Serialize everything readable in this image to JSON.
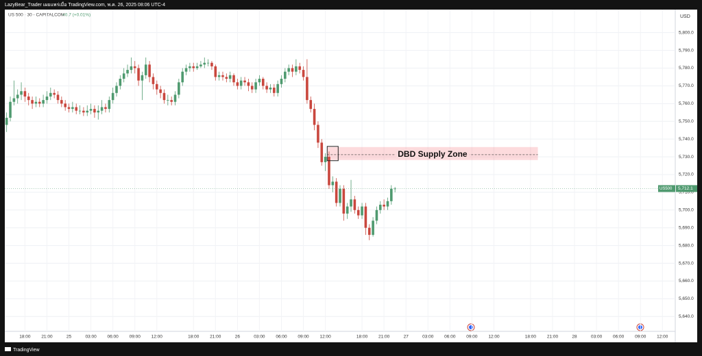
{
  "chart_data": {
    "type": "candlestick",
    "publisher": "LazyBear_Trader เผยแพร่เมื่อ TradingView.com, พ.ค. 26, 2025 08:06 UTC-4",
    "symbol_title": "US 500 - 30 - CAPITALCOM",
    "change": "+0.7 (+0.01%)",
    "currency": "USD",
    "brand": "TradingView",
    "up_color": "#4f9a6f",
    "down_color": "#c9473e",
    "grid": true,
    "xlim": [
      -0.5,
      182.5
    ],
    "ylim": [
      5632,
      5813
    ],
    "yticks": [
      {
        "value": 5640,
        "label": "5,640.0"
      },
      {
        "value": 5650,
        "label": "5,650.0"
      },
      {
        "value": 5660,
        "label": "5,660.0"
      },
      {
        "value": 5670,
        "label": "5,670.0"
      },
      {
        "value": 5680,
        "label": "5,680.0"
      },
      {
        "value": 5690,
        "label": "5,690.0"
      },
      {
        "value": 5700,
        "label": "5,700.0"
      },
      {
        "value": 5710,
        "label": "5,710.0"
      },
      {
        "value": 5720,
        "label": "5,720.0"
      },
      {
        "value": 5730,
        "label": "5,730.0"
      },
      {
        "value": 5740,
        "label": "5,740.0"
      },
      {
        "value": 5750,
        "label": "5,750.0"
      },
      {
        "value": 5760,
        "label": "5,760.0"
      },
      {
        "value": 5770,
        "label": "5,770.0"
      },
      {
        "value": 5780,
        "label": "5,780.0"
      },
      {
        "value": 5790,
        "label": "5,790.0"
      },
      {
        "value": 5800,
        "label": "5,800.0"
      }
    ],
    "xticks": [
      {
        "value": 5,
        "label": "18:00"
      },
      {
        "value": 11,
        "label": "21:00"
      },
      {
        "value": 17,
        "label": "25"
      },
      {
        "value": 23,
        "label": "03:00"
      },
      {
        "value": 29,
        "label": "06:00"
      },
      {
        "value": 35,
        "label": "09:00"
      },
      {
        "value": 41,
        "label": "12:00"
      },
      {
        "value": 51,
        "label": "18:00"
      },
      {
        "value": 57,
        "label": "21:00"
      },
      {
        "value": 63,
        "label": "26"
      },
      {
        "value": 69,
        "label": "03:00"
      },
      {
        "value": 75,
        "label": "06:00"
      },
      {
        "value": 81,
        "label": "09:00"
      },
      {
        "value": 87,
        "label": "12:00"
      },
      {
        "value": 97,
        "label": "18:00"
      },
      {
        "value": 103,
        "label": "21:00"
      },
      {
        "value": 109,
        "label": "27"
      },
      {
        "value": 115,
        "label": "03:00"
      },
      {
        "value": 121,
        "label": "06:00"
      },
      {
        "value": 127,
        "label": "09:00"
      },
      {
        "value": 133,
        "label": "12:00"
      },
      {
        "value": 143,
        "label": "18:00"
      },
      {
        "value": 149,
        "label": "21:00"
      },
      {
        "value": 155,
        "label": "28"
      },
      {
        "value": 161,
        "label": "03:00"
      },
      {
        "value": 167,
        "label": "06:00"
      },
      {
        "value": 173,
        "label": "09:00"
      },
      {
        "value": 179,
        "label": "12:00"
      }
    ],
    "open": [
      5748,
      5752,
      5761,
      5763,
      5765,
      5767,
      5764,
      5762,
      5760,
      5761,
      5760,
      5762,
      5764,
      5766,
      5765,
      5762,
      5760,
      5758,
      5757,
      5758,
      5756,
      5756,
      5755,
      5756,
      5757,
      5755,
      5756,
      5758,
      5757,
      5762,
      5766,
      5770,
      5774,
      5777,
      5779,
      5781,
      5780,
      5773,
      5776,
      5782,
      5775,
      5771,
      5768,
      5766,
      5762,
      5762,
      5761,
      5765,
      5772,
      5778,
      5780,
      5781,
      5780,
      5781,
      5782,
      5783,
      5783,
      5781,
      5775,
      5776,
      5775,
      5774,
      5776,
      5772,
      5770,
      5773,
      5772,
      5770,
      5768,
      5772,
      5774,
      5770,
      5768,
      5769,
      5766,
      5771,
      5774,
      5778,
      5780,
      5778,
      5781,
      5779,
      5775,
      5762,
      5757,
      5748,
      5738,
      5727,
      5730,
      5714,
      5716,
      5704,
      5712,
      5698,
      5702,
      5706,
      5700,
      5697,
      5702,
      5690,
      5686,
      5694,
      5700,
      5703,
      5702,
      5705,
      5712
    ],
    "high": [
      5755,
      5764,
      5773,
      5768,
      5772,
      5769,
      5766,
      5764,
      5764,
      5763,
      5765,
      5767,
      5769,
      5768,
      5767,
      5764,
      5762,
      5760,
      5761,
      5760,
      5759,
      5758,
      5759,
      5760,
      5759,
      5759,
      5762,
      5760,
      5764,
      5769,
      5772,
      5776,
      5780,
      5782,
      5786,
      5784,
      5782,
      5778,
      5786,
      5784,
      5777,
      5773,
      5770,
      5768,
      5765,
      5764,
      5767,
      5774,
      5780,
      5782,
      5783,
      5783,
      5783,
      5784,
      5786,
      5785,
      5784,
      5782,
      5778,
      5778,
      5777,
      5778,
      5777,
      5774,
      5775,
      5775,
      5774,
      5772,
      5774,
      5776,
      5775,
      5772,
      5771,
      5771,
      5773,
      5776,
      5780,
      5782,
      5782,
      5785,
      5783,
      5781,
      5785,
      5764,
      5760,
      5750,
      5740,
      5732,
      5733,
      5719,
      5718,
      5714,
      5714,
      5704,
      5717,
      5708,
      5702,
      5704,
      5704,
      5692,
      5696,
      5702,
      5705,
      5706,
      5707,
      5714,
      5713
    ],
    "low": [
      5744,
      5750,
      5759,
      5760,
      5762,
      5761,
      5759,
      5757,
      5758,
      5758,
      5758,
      5760,
      5762,
      5763,
      5760,
      5758,
      5756,
      5755,
      5755,
      5754,
      5754,
      5753,
      5753,
      5754,
      5752,
      5751,
      5754,
      5755,
      5755,
      5760,
      5764,
      5768,
      5772,
      5775,
      5777,
      5777,
      5770,
      5762,
      5774,
      5772,
      5768,
      5765,
      5763,
      5760,
      5759,
      5759,
      5759,
      5763,
      5770,
      5776,
      5778,
      5778,
      5779,
      5780,
      5780,
      5781,
      5779,
      5773,
      5773,
      5773,
      5772,
      5772,
      5770,
      5768,
      5768,
      5770,
      5767,
      5766,
      5766,
      5770,
      5768,
      5766,
      5766,
      5764,
      5764,
      5769,
      5772,
      5776,
      5775,
      5776,
      5777,
      5773,
      5760,
      5755,
      5745,
      5735,
      5725,
      5722,
      5712,
      5710,
      5702,
      5702,
      5694,
      5695,
      5699,
      5698,
      5695,
      5695,
      5686,
      5683,
      5685,
      5692,
      5698,
      5700,
      5700,
      5703,
      5710
    ],
    "close": [
      5752,
      5761,
      5763,
      5765,
      5767,
      5764,
      5762,
      5760,
      5761,
      5760,
      5762,
      5764,
      5766,
      5765,
      5762,
      5760,
      5758,
      5757,
      5758,
      5756,
      5756,
      5755,
      5756,
      5757,
      5755,
      5756,
      5758,
      5757,
      5762,
      5766,
      5770,
      5774,
      5777,
      5779,
      5781,
      5780,
      5773,
      5776,
      5782,
      5775,
      5771,
      5768,
      5766,
      5762,
      5762,
      5761,
      5765,
      5772,
      5778,
      5780,
      5781,
      5780,
      5781,
      5782,
      5783,
      5783,
      5781,
      5775,
      5776,
      5775,
      5774,
      5776,
      5772,
      5770,
      5773,
      5772,
      5770,
      5768,
      5772,
      5774,
      5770,
      5768,
      5769,
      5766,
      5771,
      5774,
      5778,
      5780,
      5778,
      5781,
      5779,
      5775,
      5762,
      5757,
      5748,
      5738,
      5727,
      5730,
      5714,
      5716,
      5704,
      5712,
      5698,
      5702,
      5706,
      5700,
      5697,
      5702,
      5690,
      5686,
      5694,
      5700,
      5703,
      5702,
      5705,
      5712,
      5712.1
    ],
    "last_price": {
      "symbol": "US500",
      "value": 5712.1,
      "label": "5,712.1"
    },
    "zone": {
      "text": "DBD Supply Zone",
      "x_start": 87.5,
      "x_end": 145,
      "y_low": 5728.2,
      "y_high": 5735.5,
      "y_mid": 5731.2
    }
  }
}
